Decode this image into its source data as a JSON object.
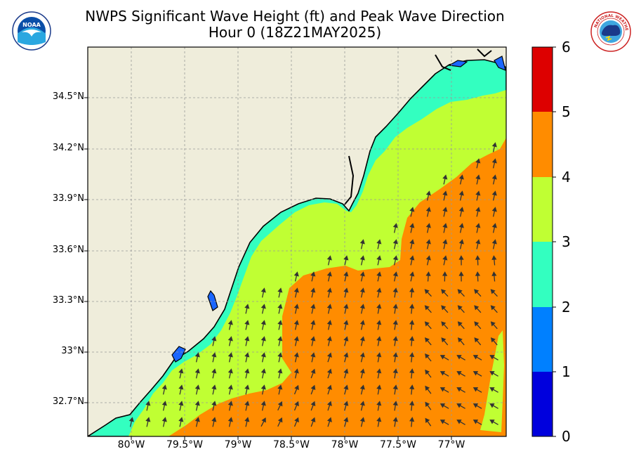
{
  "title": {
    "line1": "NWPS Significant Wave Height (ft) and Peak Wave Direction",
    "line2": "Hour 0 (18Z21MAY2025)"
  },
  "logos": {
    "left": "noaa-logo",
    "right": "national-weather-service-logo",
    "left_text": "NOAA",
    "right_text": "NATIONAL WEATHER SERVICE"
  },
  "map": {
    "lat_labels": [
      "34.5°N",
      "34.2°N",
      "33.9°N",
      "33.6°N",
      "33.3°N",
      "33°N",
      "32.7°N"
    ],
    "lon_labels": [
      "80°W",
      "79.5°W",
      "79°W",
      "78.5°W",
      "78°W",
      "77.5°W",
      "77°W"
    ],
    "land_color": "#efeddb",
    "grid": true
  },
  "colorbar": {
    "ticks": [
      "0",
      "1",
      "2",
      "3",
      "4",
      "5",
      "6"
    ],
    "colors": [
      "#0000dd",
      "#0080ff",
      "#33ffc0",
      "#c0ff33",
      "#ff8c00",
      "#dd0000"
    ],
    "units": "ft"
  },
  "wave_direction": "arrows pointing north-northeast nearshore, northwest offshore"
}
